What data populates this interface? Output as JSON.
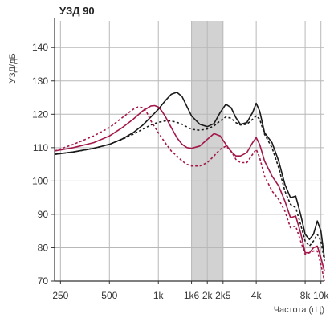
{
  "chart_data": {
    "type": "line",
    "title": "УЗД 90",
    "ylabel": "УЗД/дБ",
    "xlabel": "Частота (гЦ)",
    "x_scale": "log",
    "xlim": [
      230,
      10500
    ],
    "ylim": [
      70,
      148
    ],
    "grid": true,
    "x_ticks": [
      {
        "value": 250,
        "label": "250"
      },
      {
        "value": 500,
        "label": "500"
      },
      {
        "value": 1000,
        "label": "1k"
      },
      {
        "value": 1600,
        "label": "1k6"
      },
      {
        "value": 2000,
        "label": "2k"
      },
      {
        "value": 2500,
        "label": "2k5"
      },
      {
        "value": 4000,
        "label": "4k"
      },
      {
        "value": 8000,
        "label": "8k"
      },
      {
        "value": 10000,
        "label": "10k"
      }
    ],
    "y_ticks": [
      70,
      80,
      90,
      100,
      110,
      120,
      130,
      140
    ],
    "x_gridlines": [
      250,
      500,
      1000,
      1600,
      2000,
      2500,
      4000,
      8000,
      10000
    ],
    "shaded_band": [
      1600,
      2500
    ],
    "series": [
      {
        "color": "#1a1a1a",
        "dash": "solid",
        "x": [
          230,
          300,
          400,
          500,
          600,
          700,
          800,
          900,
          1000,
          1100,
          1200,
          1300,
          1400,
          1500,
          1600,
          1800,
          2000,
          2200,
          2400,
          2600,
          2800,
          3000,
          3200,
          3500,
          3800,
          4000,
          4200,
          4500,
          5000,
          5500,
          6000,
          6500,
          7000,
          7500,
          8000,
          8500,
          9000,
          9500,
          10000,
          10500
        ],
        "y": [
          108,
          108.7,
          109.8,
          111,
          112.6,
          114.5,
          116.7,
          119.2,
          121.5,
          124,
          126,
          126.6,
          125.3,
          122.3,
          119.5,
          117,
          116.3,
          117.2,
          120.5,
          123,
          122,
          119,
          117,
          117.5,
          120.5,
          123.3,
          121,
          114.5,
          111.5,
          106,
          99,
          95,
          95.5,
          90,
          84,
          82.5,
          84,
          88,
          85,
          77
        ]
      },
      {
        "color": "#1a1a1a",
        "dash": "dashed",
        "x": [
          230,
          300,
          400,
          500,
          600,
          700,
          800,
          900,
          1000,
          1100,
          1200,
          1300,
          1400,
          1500,
          1600,
          1800,
          2000,
          2200,
          2400,
          2600,
          2800,
          3000,
          3200,
          3500,
          3800,
          4000,
          4200,
          4500,
          5000,
          5500,
          6000,
          6500,
          7000,
          7500,
          8000,
          8500,
          9000,
          9500,
          10000,
          10500
        ],
        "y": [
          108,
          108.7,
          109.8,
          111,
          112.5,
          114,
          115.5,
          116.8,
          117.6,
          118,
          118,
          117.6,
          117,
          116.2,
          115.5,
          115.2,
          115.6,
          116.5,
          118,
          119.2,
          118.8,
          117.5,
          116.8,
          117,
          118.5,
          119.5,
          118.5,
          114,
          110,
          104,
          97,
          93,
          92,
          87,
          82,
          80.5,
          82,
          84,
          82,
          76
        ]
      },
      {
        "color": "#a3174a",
        "dash": "solid",
        "x": [
          230,
          300,
          400,
          500,
          600,
          700,
          800,
          900,
          950,
          1000,
          1050,
          1100,
          1200,
          1300,
          1400,
          1500,
          1600,
          1800,
          2000,
          2200,
          2400,
          2600,
          2800,
          3000,
          3200,
          3500,
          3800,
          4000,
          4200,
          4500,
          5000,
          5500,
          6000,
          6500,
          7000,
          7500,
          8000,
          8500,
          9000,
          9500,
          10000,
          10500
        ],
        "y": [
          109,
          110,
          111.5,
          113.5,
          116,
          118.5,
          121,
          122.5,
          122.6,
          122.2,
          121,
          119.5,
          116,
          113,
          111,
          110,
          109.8,
          110.5,
          112.5,
          114.2,
          113.5,
          111,
          108.8,
          107.5,
          107.5,
          108.5,
          111.5,
          113,
          111,
          106,
          101.5,
          98.5,
          94,
          89,
          89.5,
          84.5,
          78.5,
          78.5,
          80,
          80.5,
          77,
          73
        ]
      },
      {
        "color": "#a3174a",
        "dash": "dashed",
        "x": [
          230,
          300,
          400,
          500,
          600,
          700,
          750,
          800,
          850,
          900,
          1000,
          1100,
          1200,
          1300,
          1400,
          1500,
          1600,
          1800,
          2000,
          2200,
          2400,
          2600,
          2800,
          3000,
          3200,
          3500,
          3800,
          4000,
          4200,
          4500,
          5000,
          5500,
          6000,
          6500,
          7000,
          7500,
          8000,
          8500,
          9000,
          9500,
          10000,
          10500
        ],
        "y": [
          109,
          111,
          113.5,
          116,
          119,
          121.5,
          122.2,
          122,
          120.5,
          118,
          114.5,
          111.5,
          109,
          107.5,
          106,
          105,
          104.5,
          104.5,
          105.5,
          107.5,
          109.5,
          110.5,
          109,
          106.5,
          105.5,
          105.5,
          108,
          109.5,
          107,
          101.5,
          97,
          94.5,
          91,
          86,
          86.5,
          82,
          78,
          78.5,
          79,
          79,
          75,
          70
        ]
      }
    ]
  }
}
